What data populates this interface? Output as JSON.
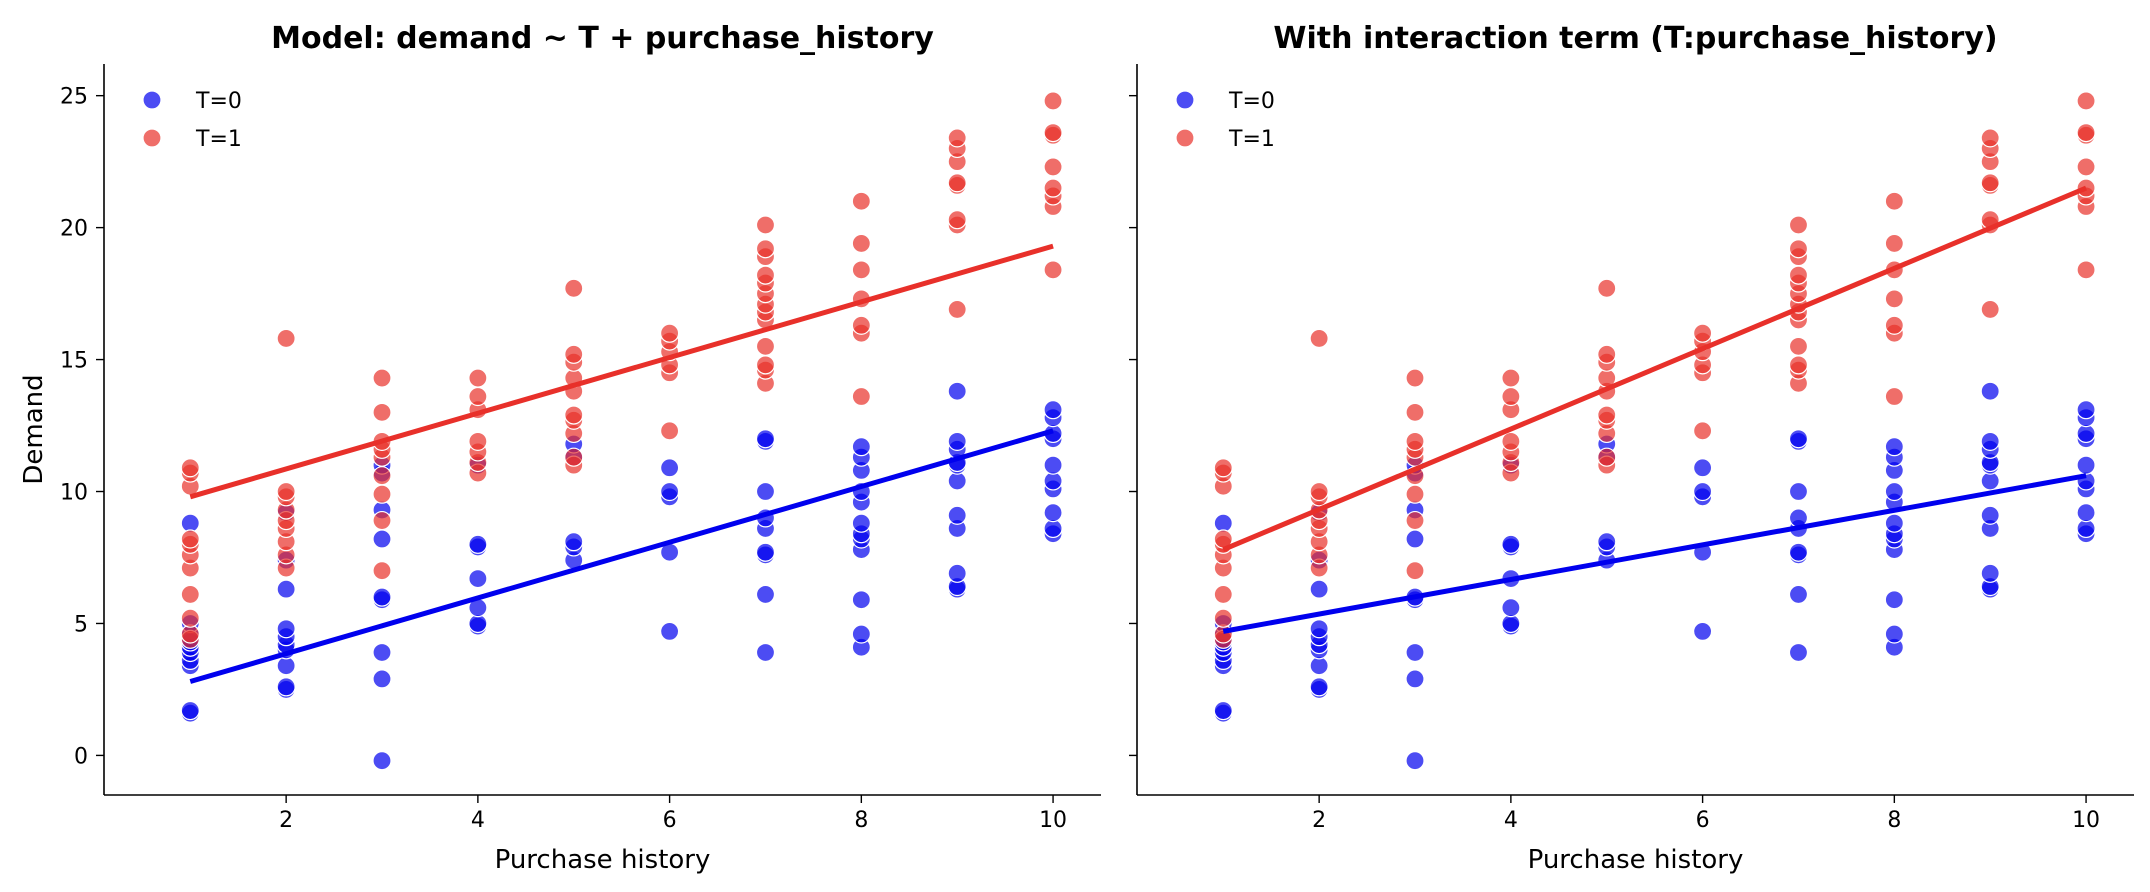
{
  "chart_data": [
    {
      "type": "scatter",
      "title": "Model: demand ~ T + purchase_history",
      "xlabel": "Purchase history",
      "ylabel": "Demand",
      "xlim": [
        0.1,
        10.5
      ],
      "ylim": [
        -1.5,
        26.2
      ],
      "xticks": [
        2,
        4,
        6,
        8,
        10
      ],
      "yticks": [
        0,
        5,
        10,
        15,
        20,
        25
      ],
      "legend_position": "top-left",
      "grid": false,
      "series": [
        {
          "name": "T=0",
          "color": "#0000ee",
          "points": [
            [
              1,
              1.6
            ],
            [
              1,
              1.7
            ],
            [
              1,
              3.4
            ],
            [
              1,
              3.6
            ],
            [
              1,
              3.9
            ],
            [
              1,
              4.1
            ],
            [
              1,
              4.3
            ],
            [
              1,
              4.6
            ],
            [
              1,
              5.0
            ],
            [
              1,
              8.8
            ],
            [
              2,
              2.5
            ],
            [
              2,
              2.6
            ],
            [
              2,
              3.4
            ],
            [
              2,
              4.0
            ],
            [
              2,
              4.2
            ],
            [
              2,
              4.5
            ],
            [
              2,
              4.8
            ],
            [
              2,
              6.3
            ],
            [
              2,
              7.4
            ],
            [
              2,
              9.2
            ],
            [
              3,
              -0.2
            ],
            [
              3,
              2.9
            ],
            [
              3,
              3.9
            ],
            [
              3,
              5.9
            ],
            [
              3,
              6.0
            ],
            [
              3,
              8.2
            ],
            [
              3,
              9.3
            ],
            [
              3,
              10.7
            ],
            [
              3,
              11.0
            ],
            [
              4,
              4.9
            ],
            [
              4,
              5.0
            ],
            [
              4,
              5.6
            ],
            [
              4,
              6.7
            ],
            [
              4,
              7.9
            ],
            [
              4,
              8.0
            ],
            [
              4,
              11.0
            ],
            [
              5,
              7.4
            ],
            [
              5,
              7.9
            ],
            [
              5,
              8.1
            ],
            [
              5,
              11.3
            ],
            [
              5,
              11.8
            ],
            [
              6,
              4.7
            ],
            [
              6,
              7.7
            ],
            [
              6,
              9.8
            ],
            [
              6,
              10.0
            ],
            [
              6,
              10.9
            ],
            [
              7,
              3.9
            ],
            [
              7,
              6.1
            ],
            [
              7,
              7.6
            ],
            [
              7,
              7.7
            ],
            [
              7,
              8.6
            ],
            [
              7,
              9.0
            ],
            [
              7,
              10.0
            ],
            [
              7,
              11.9
            ],
            [
              7,
              12.0
            ],
            [
              8,
              4.1
            ],
            [
              8,
              4.6
            ],
            [
              8,
              5.9
            ],
            [
              8,
              7.8
            ],
            [
              8,
              8.2
            ],
            [
              8,
              8.4
            ],
            [
              8,
              8.8
            ],
            [
              8,
              9.6
            ],
            [
              8,
              10.0
            ],
            [
              8,
              10.8
            ],
            [
              8,
              11.3
            ],
            [
              8,
              11.7
            ],
            [
              9,
              6.3
            ],
            [
              9,
              6.4
            ],
            [
              9,
              6.9
            ],
            [
              9,
              8.6
            ],
            [
              9,
              9.1
            ],
            [
              9,
              10.4
            ],
            [
              9,
              11.0
            ],
            [
              9,
              11.1
            ],
            [
              9,
              11.6
            ],
            [
              9,
              11.9
            ],
            [
              9,
              13.8
            ],
            [
              10,
              8.4
            ],
            [
              10,
              8.6
            ],
            [
              10,
              9.2
            ],
            [
              10,
              10.1
            ],
            [
              10,
              10.4
            ],
            [
              10,
              11.0
            ],
            [
              10,
              12.0
            ],
            [
              10,
              12.2
            ],
            [
              10,
              12.8
            ],
            [
              10,
              13.1
            ]
          ]
        },
        {
          "name": "T=1",
          "color": "#e8302a",
          "points": [
            [
              1,
              4.4
            ],
            [
              1,
              4.6
            ],
            [
              1,
              5.2
            ],
            [
              1,
              6.1
            ],
            [
              1,
              7.1
            ],
            [
              1,
              7.6
            ],
            [
              1,
              8.0
            ],
            [
              1,
              8.2
            ],
            [
              1,
              10.2
            ],
            [
              1,
              10.7
            ],
            [
              1,
              10.9
            ],
            [
              2,
              7.1
            ],
            [
              2,
              7.6
            ],
            [
              2,
              8.1
            ],
            [
              2,
              8.6
            ],
            [
              2,
              8.9
            ],
            [
              2,
              9.3
            ],
            [
              2,
              9.8
            ],
            [
              2,
              10.0
            ],
            [
              2,
              15.8
            ],
            [
              3,
              7.0
            ],
            [
              3,
              8.9
            ],
            [
              3,
              9.9
            ],
            [
              3,
              10.6
            ],
            [
              3,
              11.3
            ],
            [
              3,
              11.6
            ],
            [
              3,
              11.9
            ],
            [
              3,
              13.0
            ],
            [
              3,
              14.3
            ],
            [
              4,
              10.7
            ],
            [
              4,
              11.1
            ],
            [
              4,
              11.5
            ],
            [
              4,
              11.9
            ],
            [
              4,
              13.1
            ],
            [
              4,
              13.6
            ],
            [
              4,
              14.3
            ],
            [
              5,
              11.0
            ],
            [
              5,
              11.3
            ],
            [
              5,
              12.2
            ],
            [
              5,
              12.7
            ],
            [
              5,
              12.9
            ],
            [
              5,
              13.8
            ],
            [
              5,
              14.3
            ],
            [
              5,
              14.9
            ],
            [
              5,
              15.2
            ],
            [
              5,
              17.7
            ],
            [
              6,
              12.3
            ],
            [
              6,
              14.5
            ],
            [
              6,
              14.8
            ],
            [
              6,
              15.3
            ],
            [
              6,
              15.7
            ],
            [
              6,
              16.0
            ],
            [
              7,
              14.1
            ],
            [
              7,
              14.6
            ],
            [
              7,
              14.8
            ],
            [
              7,
              15.5
            ],
            [
              7,
              16.5
            ],
            [
              7,
              16.8
            ],
            [
              7,
              17.1
            ],
            [
              7,
              17.5
            ],
            [
              7,
              17.9
            ],
            [
              7,
              18.2
            ],
            [
              7,
              18.9
            ],
            [
              7,
              19.2
            ],
            [
              7,
              20.1
            ],
            [
              8,
              13.6
            ],
            [
              8,
              16.0
            ],
            [
              8,
              16.3
            ],
            [
              8,
              17.3
            ],
            [
              8,
              18.4
            ],
            [
              8,
              19.4
            ],
            [
              8,
              21.0
            ],
            [
              9,
              16.9
            ],
            [
              9,
              20.1
            ],
            [
              9,
              20.3
            ],
            [
              9,
              21.6
            ],
            [
              9,
              21.7
            ],
            [
              9,
              22.5
            ],
            [
              9,
              23.0
            ],
            [
              9,
              23.4
            ],
            [
              10,
              18.4
            ],
            [
              10,
              20.8
            ],
            [
              10,
              21.2
            ],
            [
              10,
              21.5
            ],
            [
              10,
              22.3
            ],
            [
              10,
              23.5
            ],
            [
              10,
              23.6
            ],
            [
              10,
              24.8
            ]
          ]
        }
      ],
      "fit_lines": [
        {
          "series": "T=0",
          "color": "#0000ee",
          "x": [
            1,
            10
          ],
          "y": [
            2.8,
            12.3
          ]
        },
        {
          "series": "T=1",
          "color": "#e8302a",
          "x": [
            1,
            10
          ],
          "y": [
            9.8,
            19.3
          ]
        }
      ]
    },
    {
      "type": "scatter",
      "title": "With interaction term (T:purchase_history)",
      "xlabel": "Purchase history",
      "ylabel": "",
      "xlim": [
        0.1,
        10.5
      ],
      "ylim": [
        -1.5,
        26.2
      ],
      "xticks": [
        2,
        4,
        6,
        8,
        10
      ],
      "yticks": [
        0,
        5,
        10,
        15,
        20,
        25
      ],
      "show_ytick_labels": false,
      "legend_position": "top-left",
      "grid": false,
      "series_same_as_panel": 0,
      "fit_lines": [
        {
          "series": "T=0",
          "color": "#0000ee",
          "x": [
            1,
            10
          ],
          "y": [
            4.7,
            10.6
          ]
        },
        {
          "series": "T=1",
          "color": "#e8302a",
          "x": [
            1,
            10
          ],
          "y": [
            7.8,
            21.5
          ]
        }
      ]
    }
  ]
}
